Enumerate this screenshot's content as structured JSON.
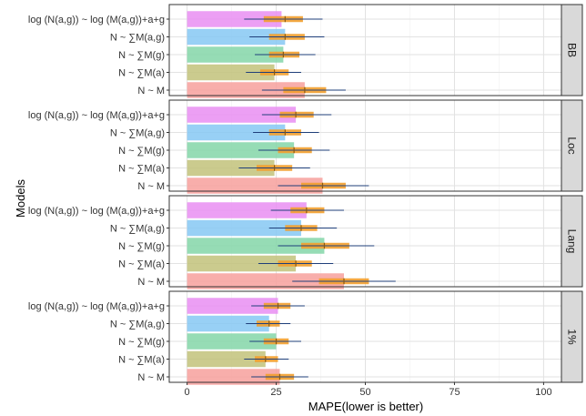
{
  "chart_data": {
    "type": "bar",
    "xlabel": "MAPE(lower is better)",
    "ylabel": "Models",
    "xlim": [
      -5,
      105
    ],
    "xticks": [
      0,
      25,
      50,
      75,
      100
    ],
    "grid": true,
    "legend": "none",
    "categories": [
      "log (N(a,g)) ~ log (M(a,g))+a+g",
      "N ~ ∑M(a,g)",
      "N ~ ∑M(g)",
      "N ~ ∑M(a)",
      "N ~ M"
    ],
    "category_colors": [
      "#e98ef2",
      "#86c8f3",
      "#84d6a8",
      "#c2c27a",
      "#f7a09c"
    ],
    "panels": [
      {
        "label": "BB",
        "series": [
          {
            "category": "log (N(a,g)) ~ log (M(a,g))+a+g",
            "bar": 26.5,
            "box": [
              21.5,
              32.5
            ],
            "median": 27.5,
            "whisker": [
              16,
              38
            ]
          },
          {
            "category": "N ~ ∑M(a,g)",
            "bar": 27.5,
            "box": [
              23,
              33
            ],
            "median": 27.5,
            "whisker": [
              17.5,
              38.5
            ]
          },
          {
            "category": "N ~ ∑M(g)",
            "bar": 27,
            "box": [
              23,
              31.5
            ],
            "median": 27,
            "whisker": [
              19,
              36
            ]
          },
          {
            "category": "N ~ ∑M(a)",
            "bar": 24.5,
            "box": [
              20.5,
              28.5
            ],
            "median": 24.5,
            "whisker": [
              16.5,
              32
            ]
          },
          {
            "category": "N ~ M",
            "bar": 33,
            "box": [
              27,
              39
            ],
            "median": 33,
            "whisker": [
              21,
              44.5
            ]
          }
        ]
      },
      {
        "label": "Loc",
        "series": [
          {
            "category": "log (N(a,g)) ~ log (M(a,g))+a+g",
            "bar": 30.5,
            "box": [
              26,
              35.5
            ],
            "median": 30.5,
            "whisker": [
              21,
              40.5
            ]
          },
          {
            "category": "N ~ ∑M(a,g)",
            "bar": 27.5,
            "box": [
              23,
              32
            ],
            "median": 27.5,
            "whisker": [
              18.5,
              37
            ]
          },
          {
            "category": "N ~ ∑M(g)",
            "bar": 30,
            "box": [
              25.5,
              35
            ],
            "median": 30,
            "whisker": [
              20,
              40
            ]
          },
          {
            "category": "N ~ ∑M(a)",
            "bar": 24.5,
            "box": [
              19.5,
              29.5
            ],
            "median": 24.5,
            "whisker": [
              14.5,
              34.5
            ]
          },
          {
            "category": "N ~ M",
            "bar": 38,
            "box": [
              32,
              44.5
            ],
            "median": 38,
            "whisker": [
              25.5,
              51
            ]
          }
        ]
      },
      {
        "label": "Lang",
        "series": [
          {
            "category": "log (N(a,g)) ~ log (M(a,g))+a+g",
            "bar": 33.5,
            "box": [
              29,
              38.5
            ],
            "median": 33.5,
            "whisker": [
              23.5,
              44
            ]
          },
          {
            "category": "N ~ ∑M(a,g)",
            "bar": 32,
            "box": [
              27.5,
              36.5
            ],
            "median": 32,
            "whisker": [
              23,
              42
            ]
          },
          {
            "category": "N ~ ∑M(g)",
            "bar": 38.5,
            "box": [
              32,
              45.5
            ],
            "median": 38.5,
            "whisker": [
              25.5,
              52.5
            ]
          },
          {
            "category": "N ~ ∑M(a)",
            "bar": 30.5,
            "box": [
              25.5,
              35
            ],
            "median": 30.5,
            "whisker": [
              20,
              41
            ]
          },
          {
            "category": "N ~ M",
            "bar": 44,
            "box": [
              37,
              51
            ],
            "median": 44,
            "whisker": [
              29.5,
              58.5
            ]
          }
        ]
      },
      {
        "label": "1%",
        "series": [
          {
            "category": "log (N(a,g)) ~ log (M(a,g))+a+g",
            "bar": 25.5,
            "box": [
              21.5,
              29
            ],
            "median": 25.5,
            "whisker": [
              18,
              33
            ]
          },
          {
            "category": "N ~ ∑M(a,g)",
            "bar": 23,
            "box": [
              19.5,
              26
            ],
            "median": 23,
            "whisker": [
              16.5,
              29
            ]
          },
          {
            "category": "N ~ ∑M(g)",
            "bar": 25,
            "box": [
              21.5,
              28.5
            ],
            "median": 25,
            "whisker": [
              17.5,
              32
            ]
          },
          {
            "category": "N ~ ∑M(a)",
            "bar": 22,
            "box": [
              19,
              25.5
            ],
            "median": 22,
            "whisker": [
              16,
              28.5
            ]
          },
          {
            "category": "N ~ M",
            "bar": 26,
            "box": [
              22,
              30
            ],
            "median": 26,
            "whisker": [
              18,
              34
            ]
          }
        ]
      }
    ]
  }
}
